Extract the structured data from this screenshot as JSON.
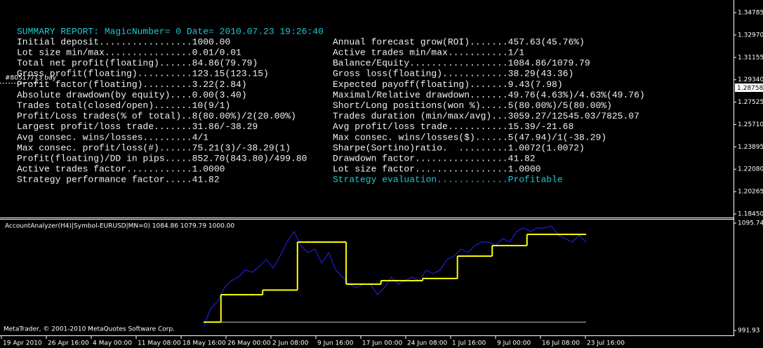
{
  "chart_window": {
    "price_labels": [
      "1.34785",
      "1.32970",
      "1.31155",
      "1.29340",
      "1.27525",
      "1.25710",
      "1.23895",
      "1.22080",
      "1.20265",
      "1.18450"
    ],
    "current_price": "1.28758",
    "order_label": "#80517713 buy",
    "report": {
      "header": "SUMMARY REPORT: MagicNumber= 0 Date= 2010.07.23 19:26:40",
      "left": [
        "Initial deposit.................1000.00",
        "Lot size min/max................0.01/0.01",
        "Total net profit(floating)......84.86(79.79)",
        "Gross profit(floating)..........123.15(123.15)",
        "Profit factor(floating).........3.22(2.84)",
        "Absolute drawdown(by equity)....0.00(3.40)",
        "Trades total(closed/open).......10(9/1)",
        "Profit/Loss trades(% of total)..8(80.00%)/2(20.00%)",
        "Largest profit/loss trade.......31.86/-38.29",
        "Avg consec. wins/losses.........4/1",
        "Max consec. profit/loss(#)......75.21(3)/-38.29(1)",
        "Profit(floating)/DD in pips.....852.70(843.80)/499.80",
        "Active trades factor............1.0000",
        "Strategy performance factor.....41.82"
      ],
      "right": [
        "Annual forecast grow(ROI).......457.63(45.76%)",
        "Active trades min/max...........1/1",
        "Balance/Equity..................1084.86/1079.79",
        "Gross loss(floating)............38.29(43.36)",
        "Expected payoff(floating).......9.43(7.98)",
        "Maximal/Relative drawdown.......49.76(4.63%)/4.63%(49.76)",
        "Short/Long positions(won %).....5(80.00%)/5(80.00%)",
        "Trades duration (min/max/avg)...3059.27/12545.03/7825.07",
        "Avg profit/loss trade...........15.39/-21.68",
        "Max consec. wins/losses($)......5(47.94)/1(-38.29)",
        "Sharpe(Sortino)ratio.  .........1.0072(1.0072)",
        "Drawdown factor.................41.82",
        "Lot size factor.................1.0000",
        "Strategy evaluation.............Profitable"
      ]
    }
  },
  "indicator": {
    "title": "AccountAnalyzer(H4)|Symbol-EURUSD|MN=0) 1084.86 1079.79 1000.00",
    "copyright": "MetaTrader, © 2001-2010 MetaQuotes Software Corp.",
    "ylim": [
      987.18,
      1099.13
    ],
    "yticks": [
      1095.74,
      991.93
    ],
    "deposit": 1000,
    "balance_color": "#ffff00",
    "equity_color": "#2424ff",
    "deposit_color": "#c8c8c8",
    "balance": [
      1000,
      1000,
      1000,
      1026.5,
      1026.5,
      1026.5,
      1026.5,
      1026.5,
      1026.5,
      1031,
      1031,
      1031,
      1031,
      1031,
      1077.4,
      1077.4,
      1077.4,
      1077.4,
      1077.4,
      1077.4,
      1077.4,
      1036.7,
      1036.7,
      1036.7,
      1036.7,
      1036.7,
      1040.1,
      1040.1,
      1040.1,
      1040.1,
      1040.1,
      1040.1,
      1042.2,
      1042.2,
      1042.2,
      1042.2,
      1042.2,
      1063.8,
      1063.8,
      1063.8,
      1063.8,
      1063.8,
      1074,
      1074,
      1074,
      1074,
      1074,
      1084.86,
      1084.86,
      1084.86,
      1084.86,
      1084.86,
      1084.86,
      1084.86,
      1084.86,
      1084.86
    ],
    "equity": [
      995.3,
      1013,
      1019.7,
      1033.3,
      1040.1,
      1043.5,
      1050.3,
      1048.2,
      1053.7,
      1060.5,
      1052.3,
      1063.8,
      1077.4,
      1087.6,
      1074,
      1067.2,
      1070.6,
      1057.1,
      1067.2,
      1050.3,
      1043.5,
      1036.7,
      1033.3,
      1036.7,
      1036.7,
      1026.5,
      1033.3,
      1043.5,
      1036.7,
      1040.1,
      1043.5,
      1040.1,
      1050.3,
      1046.9,
      1050.3,
      1060.5,
      1063.8,
      1070.6,
      1067.2,
      1074,
      1077.4,
      1077.4,
      1074,
      1080.8,
      1077.4,
      1087.6,
      1091,
      1087.6,
      1091,
      1091,
      1093,
      1084.2,
      1080.8,
      1077.4,
      1084.2,
      1077.4
    ]
  },
  "time_labels": [
    "19 Apr 2010",
    "26 Apr 16:00",
    "4 May 00:00",
    "11 May 08:00",
    "18 May 16:00",
    "26 May 00:00",
    "2 Jun 08:00",
    "9 Jun 16:00",
    "17 Jun 00:00",
    "24 Jun 08:00",
    "1 Jul 16:00",
    "9 Jul 00:00",
    "16 Jul 08:00",
    "23 Jul 16:00"
  ]
}
